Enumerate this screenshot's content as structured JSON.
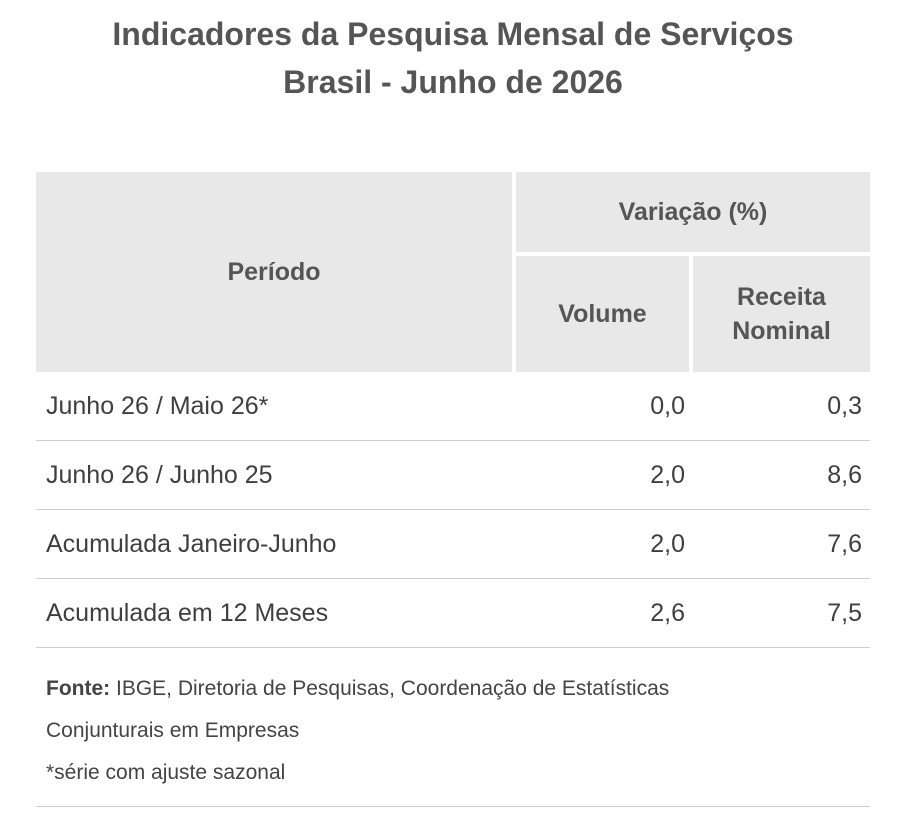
{
  "title": {
    "line1": "Indicadores da Pesquisa Mensal de Serviços",
    "line2": "Brasil - Junho de 2026"
  },
  "table": {
    "headers": {
      "periodo": "Período",
      "variacao": "Variação (%)",
      "volume": "Volume",
      "receita_line1": "Receita",
      "receita_line2": "Nominal"
    },
    "rows": [
      {
        "periodo": "Junho 26 / Maio 26*",
        "volume": "0,0",
        "receita": "0,3"
      },
      {
        "periodo": "Junho 26 / Junho 25",
        "volume": "2,0",
        "receita": "8,6"
      },
      {
        "periodo": "Acumulada Janeiro-Junho",
        "volume": "2,0",
        "receita": "7,6"
      },
      {
        "periodo": "Acumulada em 12 Meses",
        "volume": "2,6",
        "receita": "7,5"
      }
    ]
  },
  "notes": {
    "fonte_label": "Fonte:",
    "fonte_text": "IBGE, Diretoria de Pesquisas, Coordenação de Estatísticas",
    "fonte_text_line2": "Conjunturais em Empresas",
    "footnote": "*série com ajuste sazonal"
  }
}
